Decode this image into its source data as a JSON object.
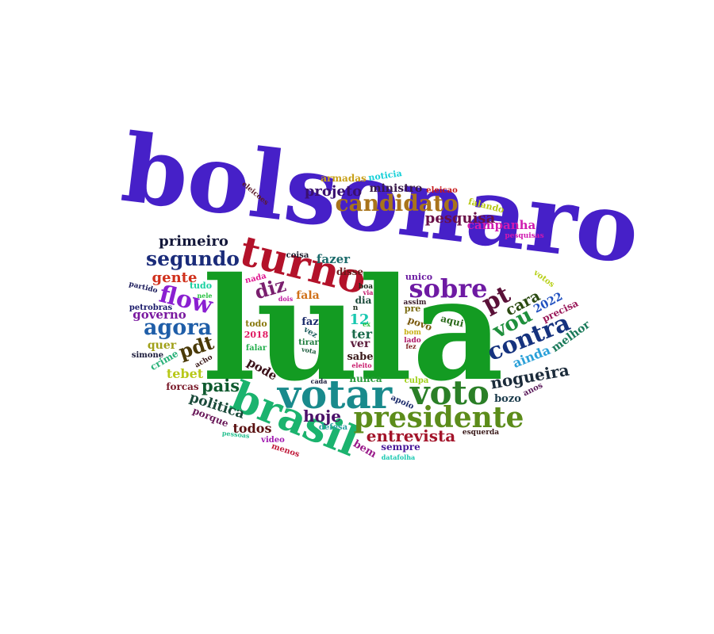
{
  "words": [
    {
      "text": "lula",
      "color": "#139b22"
    },
    {
      "text": "bolsonaro",
      "color": "#4620c8"
    },
    {
      "text": "turno",
      "color": "#b3122a"
    },
    {
      "text": "brasil",
      "color": "#1bb36e"
    },
    {
      "text": "votar",
      "color": "#198a8c"
    },
    {
      "text": "voto",
      "color": "#2a7f27"
    },
    {
      "text": "presidente",
      "color": "#5c8c1a"
    },
    {
      "text": "candidato",
      "color": "#a9741b"
    },
    {
      "text": "sobre",
      "color": "#6e1aa3"
    },
    {
      "text": "contra",
      "color": "#15327e"
    },
    {
      "text": "agora",
      "color": "#1f5ea8"
    },
    {
      "text": "segundo",
      "color": "#1b2c7a"
    },
    {
      "text": "flow",
      "color": "#8a1fd1"
    },
    {
      "text": "nogueira",
      "color": "#1b2b3a"
    },
    {
      "text": "vou",
      "color": "#1e8f3c"
    },
    {
      "text": "pt",
      "color": "#5a1038"
    },
    {
      "text": "entrevista",
      "color": "#a3142a"
    },
    {
      "text": "diz",
      "color": "#7a1f6e"
    },
    {
      "text": "pdt",
      "color": "#4a3a08"
    },
    {
      "text": "hoje",
      "color": "#4a1068"
    },
    {
      "text": "pais",
      "color": "#0e5a2e"
    },
    {
      "text": "primeiro",
      "color": "#14183a"
    },
    {
      "text": "projeto",
      "color": "#3a1070"
    },
    {
      "text": "pesquisa",
      "color": "#6a1048"
    },
    {
      "text": "cara",
      "color": "#2a4a10"
    },
    {
      "text": "gente",
      "color": "#d0301c"
    },
    {
      "text": "politica",
      "color": "#1a4a3a"
    },
    {
      "text": "todos",
      "color": "#5a1010"
    },
    {
      "text": "campanha",
      "color": "#d01cb0"
    },
    {
      "text": "ainda",
      "color": "#2aa0d8"
    },
    {
      "text": "governo",
      "color": "#7a1aa0"
    },
    {
      "text": "tebet",
      "color": "#b8c818"
    },
    {
      "text": "fazer",
      "color": "#1a6a6a"
    },
    {
      "text": "ter",
      "color": "#1a6a4a"
    },
    {
      "text": "pode",
      "color": "#3a1018"
    },
    {
      "text": "ministro",
      "color": "#3a1a4a"
    },
    {
      "text": "melhor",
      "color": "#1a7a5a"
    },
    {
      "text": "12",
      "color": "#18c8b0"
    },
    {
      "text": "quer",
      "color": "#a0a018"
    },
    {
      "text": "ver",
      "color": "#5a1a3a"
    },
    {
      "text": "2022",
      "color": "#2050c0"
    },
    {
      "text": "bem",
      "color": "#9a1a8a"
    },
    {
      "text": "faz",
      "color": "#1a2a6a"
    },
    {
      "text": "sabe",
      "color": "#3a1a1a"
    },
    {
      "text": "fala",
      "color": "#d07018"
    },
    {
      "text": "armadas",
      "color": "#c8a018"
    },
    {
      "text": "disse",
      "color": "#6a1a1a"
    },
    {
      "text": "crime",
      "color": "#28b078"
    },
    {
      "text": "falando",
      "color": "#b8c818"
    },
    {
      "text": "bozo",
      "color": "#1a3a4a"
    },
    {
      "text": "porque",
      "color": "#6a1a5a"
    },
    {
      "text": "povo",
      "color": "#7a5a10"
    },
    {
      "text": "sempre",
      "color": "#4a1a9a"
    },
    {
      "text": "nunca",
      "color": "#2a9a3a"
    },
    {
      "text": "forcas",
      "color": "#7a1a2a"
    },
    {
      "text": "precisa",
      "color": "#9a1a5a"
    },
    {
      "text": "aqui",
      "color": "#2a6a1a"
    },
    {
      "text": "todo",
      "color": "#8a7a10"
    },
    {
      "text": "dia",
      "color": "#1a4a3a"
    },
    {
      "text": "unico",
      "color": "#6a1aa0"
    },
    {
      "text": "tudo",
      "color": "#18d0a0"
    },
    {
      "text": "noticia",
      "color": "#18d0d8"
    },
    {
      "text": "eleicao",
      "color": "#c81a1a"
    },
    {
      "text": "simone",
      "color": "#1a1a3a"
    },
    {
      "text": "petrobras",
      "color": "#1a1a6a"
    },
    {
      "text": "falar",
      "color": "#28b050"
    },
    {
      "text": "nada",
      "color": "#e01890"
    },
    {
      "text": "2018",
      "color": "#e01860"
    },
    {
      "text": "video",
      "color": "#a01ab0"
    },
    {
      "text": "culpa",
      "color": "#a0d018"
    },
    {
      "text": "votos",
      "color": "#b8d018"
    },
    {
      "text": "pre",
      "color": "#7a6a10"
    },
    {
      "text": "apoio",
      "color": "#1a2a6a"
    },
    {
      "text": "defesa",
      "color": "#28a0a0"
    },
    {
      "text": "menos",
      "color": "#c01a3a"
    },
    {
      "text": "eleicoes",
      "color": "#5a1a2a"
    },
    {
      "text": "coisa",
      "color": "#1a1a2a"
    },
    {
      "text": "anos",
      "color": "#5a1a5a"
    },
    {
      "text": "tirar",
      "color": "#1a7a3a"
    },
    {
      "text": "boa",
      "color": "#1a2a1a"
    },
    {
      "text": "vez",
      "color": "#1a5a5a"
    },
    {
      "text": "esquerda",
      "color": "#3a1a1a"
    },
    {
      "text": "pesquisas",
      "color": "#d018b0"
    },
    {
      "text": "acho",
      "color": "#3a1a1a"
    },
    {
      "text": "partido",
      "color": "#1a1a5a"
    },
    {
      "text": "assim",
      "color": "#3a1a2a"
    },
    {
      "text": "bom",
      "color": "#c8b018"
    },
    {
      "text": "lado",
      "color": "#b01a6a"
    },
    {
      "text": "fez",
      "color": "#7a1a1a"
    },
    {
      "text": "ex",
      "color": "#28c040"
    },
    {
      "text": "via",
      "color": "#c0186a"
    },
    {
      "text": "nele",
      "color": "#28c040"
    },
    {
      "text": "dois",
      "color": "#c018a0"
    },
    {
      "text": "vota",
      "color": "#1a5a3a"
    },
    {
      "text": "cada",
      "color": "#1a1a3a"
    },
    {
      "text": "pessoas",
      "color": "#28c090"
    },
    {
      "text": "datafolha",
      "color": "#18c8b0"
    },
    {
      "text": "eleito",
      "color": "#c8186a"
    },
    {
      "text": "n",
      "color": "#1a2a1a"
    }
  ]
}
